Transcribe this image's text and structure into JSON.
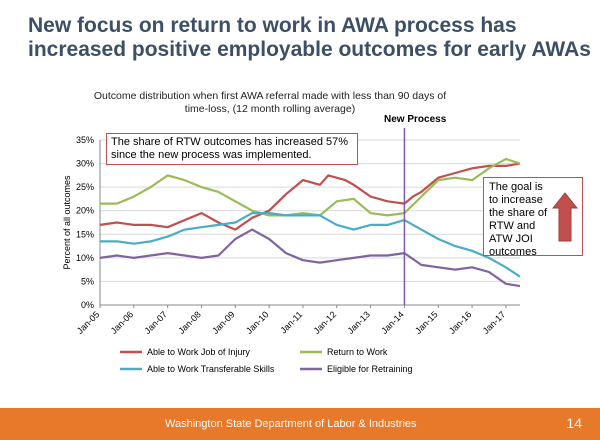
{
  "slide": {
    "title_line1": "New focus on return to work in AWA process has",
    "title_line2": "increased positive employable outcomes for early AWAs",
    "footer_text": "Washington State Department of Labor & Industries",
    "page_number": "14"
  },
  "colors": {
    "title": "#3c4f67",
    "footer": "#e8782a",
    "annotation_border": "#c0504d",
    "arrow": "#c0504d"
  },
  "chart_data": {
    "type": "line",
    "title_line1": "Outcome distribution when first AWA referral made with less than 90 days of",
    "title_line2": "time-loss, (12 month rolling average)",
    "ylabel": "Percent of all outcomes",
    "xlabel": "",
    "ylim": [
      0,
      35
    ],
    "yticks": [
      "0%",
      "5%",
      "10%",
      "15%",
      "20%",
      "25%",
      "30%",
      "35%"
    ],
    "xticks": [
      "Jan-05",
      "Jan-06",
      "Jan-07",
      "Jan-08",
      "Jan-09",
      "Jan-10",
      "Jan-11",
      "Jan-12",
      "Jan-13",
      "Jan-14",
      "Jan-15",
      "Jan-16",
      "Jan-17"
    ],
    "x_start": "2005-01",
    "x_end": "2017-06",
    "grid": true,
    "legend_position": "bottom",
    "new_process": {
      "label": "New Process",
      "x": "2014-01"
    },
    "annotation": "The share of RTW outcomes has increased 57% since the new process was implemented.",
    "goal_note": "The goal is to increase the share of RTW and ATW JOI outcomes",
    "series": [
      {
        "name": "Able to Work Job of Injury",
        "color": "#c0504d",
        "points": [
          [
            "2005-01",
            17
          ],
          [
            "2005-07",
            17.5
          ],
          [
            "2006-01",
            17
          ],
          [
            "2006-07",
            17
          ],
          [
            "2007-01",
            16.5
          ],
          [
            "2007-07",
            18
          ],
          [
            "2008-01",
            19.5
          ],
          [
            "2008-07",
            17.5
          ],
          [
            "2009-01",
            16
          ],
          [
            "2009-07",
            18.5
          ],
          [
            "2010-01",
            20
          ],
          [
            "2010-07",
            23.5
          ],
          [
            "2011-01",
            26.5
          ],
          [
            "2011-07",
            25.5
          ],
          [
            "2011-10",
            27.5
          ],
          [
            "2012-04",
            26.5
          ],
          [
            "2012-07",
            25.5
          ],
          [
            "2013-01",
            23
          ],
          [
            "2013-07",
            22
          ],
          [
            "2014-01",
            21.5
          ],
          [
            "2014-04",
            23
          ],
          [
            "2014-07",
            24
          ],
          [
            "2015-01",
            27
          ],
          [
            "2015-07",
            28
          ],
          [
            "2016-01",
            29
          ],
          [
            "2016-07",
            29.5
          ],
          [
            "2017-01",
            29.5
          ],
          [
            "2017-06",
            30
          ]
        ]
      },
      {
        "name": "Return to Work",
        "color": "#9bbb59",
        "points": [
          [
            "2005-01",
            21.5
          ],
          [
            "2005-07",
            21.5
          ],
          [
            "2006-01",
            23
          ],
          [
            "2006-07",
            25
          ],
          [
            "2007-01",
            27.5
          ],
          [
            "2007-07",
            26.5
          ],
          [
            "2008-01",
            25
          ],
          [
            "2008-07",
            24
          ],
          [
            "2009-01",
            22
          ],
          [
            "2009-07",
            20
          ],
          [
            "2010-01",
            19
          ],
          [
            "2010-07",
            19
          ],
          [
            "2011-01",
            19.5
          ],
          [
            "2011-07",
            19
          ],
          [
            "2012-01",
            22
          ],
          [
            "2012-07",
            22.5
          ],
          [
            "2013-01",
            19.5
          ],
          [
            "2013-07",
            19
          ],
          [
            "2014-01",
            19.5
          ],
          [
            "2014-07",
            23
          ],
          [
            "2015-01",
            26.5
          ],
          [
            "2015-07",
            27
          ],
          [
            "2016-01",
            26.5
          ],
          [
            "2016-07",
            29
          ],
          [
            "2017-01",
            31
          ],
          [
            "2017-06",
            30
          ]
        ]
      },
      {
        "name": "Able to Work Transferable Skills",
        "color": "#4bacc6",
        "points": [
          [
            "2005-01",
            13.5
          ],
          [
            "2005-07",
            13.5
          ],
          [
            "2006-01",
            13
          ],
          [
            "2006-07",
            13.5
          ],
          [
            "2007-01",
            14.5
          ],
          [
            "2007-07",
            16
          ],
          [
            "2008-01",
            16.5
          ],
          [
            "2008-07",
            17
          ],
          [
            "2009-01",
            17.5
          ],
          [
            "2009-07",
            19.5
          ],
          [
            "2010-01",
            19.5
          ],
          [
            "2010-07",
            19
          ],
          [
            "2011-01",
            19
          ],
          [
            "2011-07",
            19
          ],
          [
            "2012-01",
            17
          ],
          [
            "2012-07",
            16
          ],
          [
            "2013-01",
            17
          ],
          [
            "2013-07",
            17
          ],
          [
            "2014-01",
            18
          ],
          [
            "2014-07",
            16
          ],
          [
            "2015-01",
            14
          ],
          [
            "2015-07",
            12.5
          ],
          [
            "2016-01",
            11.5
          ],
          [
            "2016-07",
            10
          ],
          [
            "2017-01",
            8
          ],
          [
            "2017-06",
            6
          ]
        ]
      },
      {
        "name": "Eligible for Retraining",
        "color": "#8064a2",
        "points": [
          [
            "2005-01",
            10
          ],
          [
            "2005-07",
            10.5
          ],
          [
            "2006-01",
            10
          ],
          [
            "2006-07",
            10.5
          ],
          [
            "2007-01",
            11
          ],
          [
            "2007-07",
            10.5
          ],
          [
            "2008-01",
            10
          ],
          [
            "2008-07",
            10.5
          ],
          [
            "2009-01",
            14
          ],
          [
            "2009-07",
            16
          ],
          [
            "2010-01",
            14
          ],
          [
            "2010-07",
            11
          ],
          [
            "2011-01",
            9.5
          ],
          [
            "2011-07",
            9
          ],
          [
            "2012-01",
            9.5
          ],
          [
            "2012-07",
            10
          ],
          [
            "2013-01",
            10.5
          ],
          [
            "2013-07",
            10.5
          ],
          [
            "2014-01",
            11
          ],
          [
            "2014-07",
            8.5
          ],
          [
            "2015-01",
            8
          ],
          [
            "2015-07",
            7.5
          ],
          [
            "2016-01",
            8
          ],
          [
            "2016-07",
            7
          ],
          [
            "2017-01",
            4.5
          ],
          [
            "2017-06",
            4
          ]
        ]
      }
    ]
  }
}
